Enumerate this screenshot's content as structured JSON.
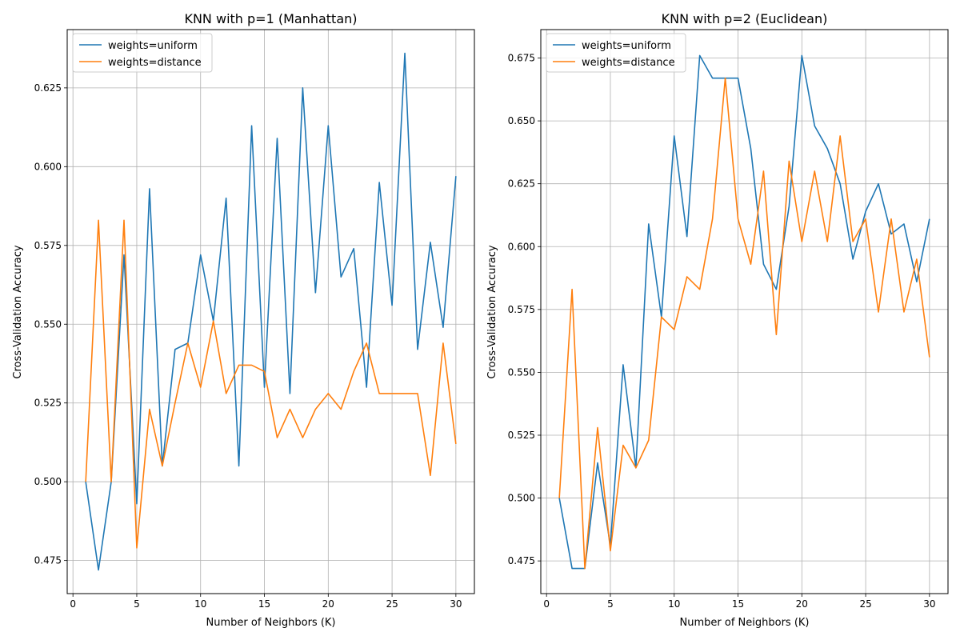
{
  "colors": {
    "uniform": "#1f77b4",
    "distance": "#ff7f0e",
    "grid": "#b0b0b0",
    "axis": "#000000"
  },
  "chart_data": [
    {
      "type": "line",
      "title": "KNN with p=1 (Manhattan)",
      "xlabel": "Number of Neighbors (K)",
      "ylabel": "Cross-Validation Accuracy",
      "xlim": [
        -0.45,
        31.45
      ],
      "ylim": [
        0.4645,
        0.6435
      ],
      "xticks": [
        0,
        5,
        10,
        15,
        20,
        25,
        30
      ],
      "xtick_labels": [
        "0",
        "5",
        "10",
        "15",
        "20",
        "25",
        "30"
      ],
      "yticks": [
        0.475,
        0.5,
        0.525,
        0.55,
        0.575,
        0.6,
        0.625
      ],
      "ytick_labels": [
        "0.475",
        "0.500",
        "0.525",
        "0.550",
        "0.575",
        "0.600",
        "0.625"
      ],
      "grid": true,
      "legend": "upper-left",
      "x": [
        1,
        2,
        3,
        4,
        5,
        6,
        7,
        8,
        9,
        10,
        11,
        12,
        13,
        14,
        15,
        16,
        17,
        18,
        19,
        20,
        21,
        22,
        23,
        24,
        25,
        26,
        27,
        28,
        29,
        30
      ],
      "series": [
        {
          "name": "weights=uniform",
          "color": "#1f77b4",
          "values": [
            0.5,
            0.472,
            0.5,
            0.572,
            0.493,
            0.593,
            0.505,
            0.542,
            0.544,
            0.572,
            0.551,
            0.59,
            0.505,
            0.613,
            0.53,
            0.609,
            0.528,
            0.625,
            0.56,
            0.613,
            0.565,
            0.574,
            0.53,
            0.595,
            0.556,
            0.636,
            0.542,
            0.576,
            0.549,
            0.597
          ]
        },
        {
          "name": "weights=distance",
          "color": "#ff7f0e",
          "values": [
            0.5,
            0.583,
            0.5,
            0.583,
            0.479,
            0.523,
            0.505,
            0.525,
            0.544,
            0.53,
            0.551,
            0.528,
            0.537,
            0.537,
            0.535,
            0.514,
            0.523,
            0.514,
            0.523,
            0.528,
            0.523,
            0.535,
            0.544,
            0.528,
            0.528,
            0.528,
            0.528,
            0.502,
            0.544,
            0.512
          ]
        }
      ]
    },
    {
      "type": "line",
      "title": "KNN with p=2 (Euclidean)",
      "xlabel": "Number of Neighbors (K)",
      "ylabel": "Cross-Validation Accuracy",
      "xlim": [
        -0.45,
        31.45
      ],
      "ylim": [
        0.462,
        0.6863
      ],
      "xticks": [
        0,
        5,
        10,
        15,
        20,
        25,
        30
      ],
      "xtick_labels": [
        "0",
        "5",
        "10",
        "15",
        "20",
        "25",
        "30"
      ],
      "yticks": [
        0.475,
        0.5,
        0.525,
        0.55,
        0.575,
        0.6,
        0.625,
        0.65,
        0.675
      ],
      "ytick_labels": [
        "0.475",
        "0.500",
        "0.525",
        "0.550",
        "0.575",
        "0.600",
        "0.625",
        "0.650",
        "0.675"
      ],
      "grid": true,
      "legend": "upper-left",
      "x": [
        1,
        2,
        3,
        4,
        5,
        6,
        7,
        8,
        9,
        10,
        11,
        12,
        13,
        14,
        15,
        16,
        17,
        18,
        19,
        20,
        21,
        22,
        23,
        24,
        25,
        26,
        27,
        28,
        29,
        30
      ],
      "series": [
        {
          "name": "weights=uniform",
          "color": "#1f77b4",
          "values": [
            0.5,
            0.472,
            0.472,
            0.514,
            0.481,
            0.553,
            0.512,
            0.609,
            0.572,
            0.644,
            0.604,
            0.676,
            0.667,
            0.667,
            0.667,
            0.639,
            0.593,
            0.583,
            0.616,
            0.676,
            0.648,
            0.639,
            0.625,
            0.595,
            0.614,
            0.625,
            0.605,
            0.609,
            0.586,
            0.611
          ]
        },
        {
          "name": "weights=distance",
          "color": "#ff7f0e",
          "values": [
            0.5,
            0.583,
            0.472,
            0.528,
            0.479,
            0.521,
            0.512,
            0.523,
            0.572,
            0.567,
            0.588,
            0.583,
            0.611,
            0.667,
            0.611,
            0.593,
            0.63,
            0.565,
            0.634,
            0.602,
            0.63,
            0.602,
            0.644,
            0.602,
            0.611,
            0.574,
            0.611,
            0.574,
            0.595,
            0.556
          ]
        }
      ]
    }
  ]
}
